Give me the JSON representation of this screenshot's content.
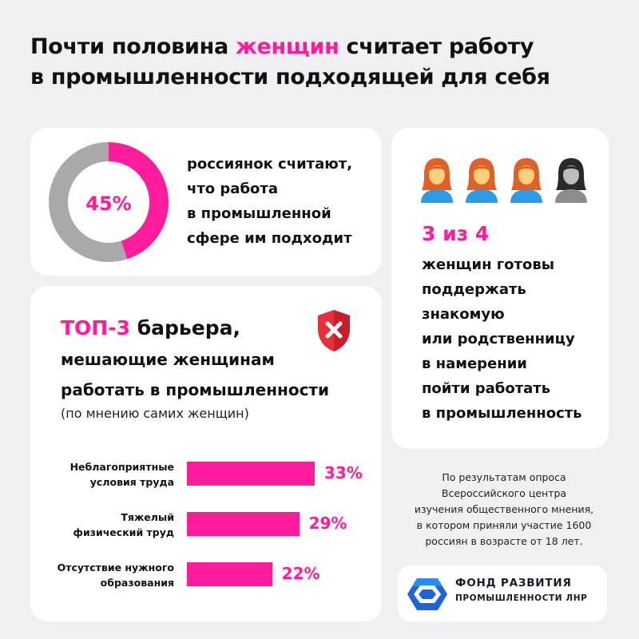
{
  "headline": {
    "part1": "Почти половина ",
    "accent": "женщин",
    "part2": " считает работу",
    "line2": "в промышленности подходящей для себя"
  },
  "donut_card": {
    "value_label": "45%",
    "line1": "россиянок считают,",
    "line2": "что работа",
    "line3": "в промышленной",
    "line4": "сфере им подходит"
  },
  "people_card": {
    "stat": "3 из 4",
    "lines": [
      "женщин готовы",
      "поддержать",
      "знакомую",
      "или родственницу",
      "в намерении",
      "пойти работать",
      "в промышленность"
    ]
  },
  "barriers_card": {
    "title_accent": "ТОП-3",
    "title_rest": " барьера,",
    "title_line2": "мешающие женщинам",
    "title_line3": "работать в промышленности",
    "subtitle": "(по мнению самих женщин)"
  },
  "footnote": {
    "lines": [
      "По результатам опроса",
      "Всероссийского центра",
      "изучения общественного мнения,",
      "в котором приняли участие 1600",
      "россиян в возрасте от 18 лет."
    ]
  },
  "logo": {
    "line1": "ФОНД РАЗВИТИЯ",
    "line2": "ПРОМЫШЛЕННОСТИ ЛНР"
  },
  "colors": {
    "accent": "#ff1c9c",
    "donut_rest": "#a9a9a9",
    "female_icon": "#f08a2a",
    "grey_icon": "#9a9a9a",
    "shield": "#e8303a"
  },
  "icons": [
    "woman-icon",
    "woman-icon",
    "woman-icon",
    "woman-grey-icon",
    "shield-x-icon",
    "hexagon-logo-icon"
  ],
  "chart_data": [
    {
      "type": "pie",
      "values": [
        45,
        55
      ],
      "center_label": "45%"
    },
    {
      "type": "bar",
      "orientation": "horizontal",
      "categories": [
        [
          "Неблагоприятные",
          "условия труда"
        ],
        [
          "Тяжелый",
          "физический труд"
        ],
        [
          "Отсутствие нужного",
          "образования"
        ]
      ],
      "values": [
        33,
        29,
        22
      ],
      "value_labels": [
        "33%",
        "29%",
        "22%"
      ]
    }
  ]
}
